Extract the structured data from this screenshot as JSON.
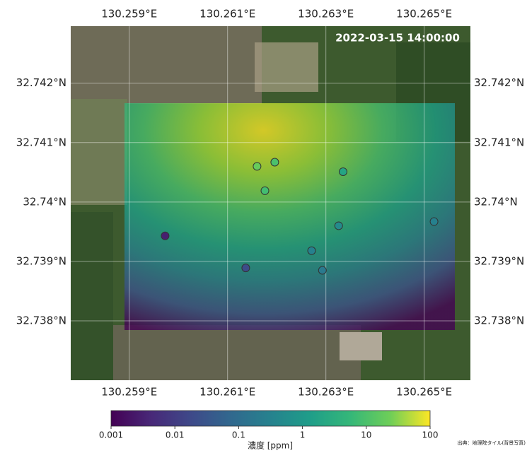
{
  "map": {
    "timestamp": "2022-03-15 14:00:00",
    "xlim": [
      130.25781,
      130.26594
    ],
    "ylim": [
      32.737,
      32.74296
    ],
    "xticks": [
      {
        "value": 130.259,
        "label": "130.259°E"
      },
      {
        "value": 130.261,
        "label": "130.261°E"
      },
      {
        "value": 130.263,
        "label": "130.263°E"
      },
      {
        "value": 130.265,
        "label": "130.265°E"
      }
    ],
    "yticks": [
      {
        "value": 32.742,
        "label": "32.742°N"
      },
      {
        "value": 32.741,
        "label": "32.741°N"
      },
      {
        "value": 32.74,
        "label": "32.74°N"
      },
      {
        "value": 32.739,
        "label": "32.739°N"
      },
      {
        "value": 32.738,
        "label": "32.738°N"
      }
    ],
    "grid": true,
    "points": {
      "lon": [
        130.2616,
        130.26196,
        130.26176,
        130.26335,
        130.26326,
        130.2652,
        130.26271,
        130.26293,
        130.26137,
        130.25973
      ],
      "lat": [
        32.7406,
        32.74067,
        32.74019,
        32.74051,
        32.7396,
        32.73967,
        32.73918,
        32.73885,
        32.73889,
        32.73943
      ],
      "values": [
        20,
        10,
        8,
        2,
        0.5,
        0.3,
        0.3,
        0.2,
        0.02,
        0.003
      ]
    },
    "colorbar": {
      "clim": [
        0.001,
        100
      ],
      "log": true,
      "ticks": [
        0.001,
        0.01,
        0.1,
        1,
        10,
        100
      ],
      "label": "濃度 [ppm]"
    },
    "source": "出典：地理院タイル(背景写真)"
  }
}
